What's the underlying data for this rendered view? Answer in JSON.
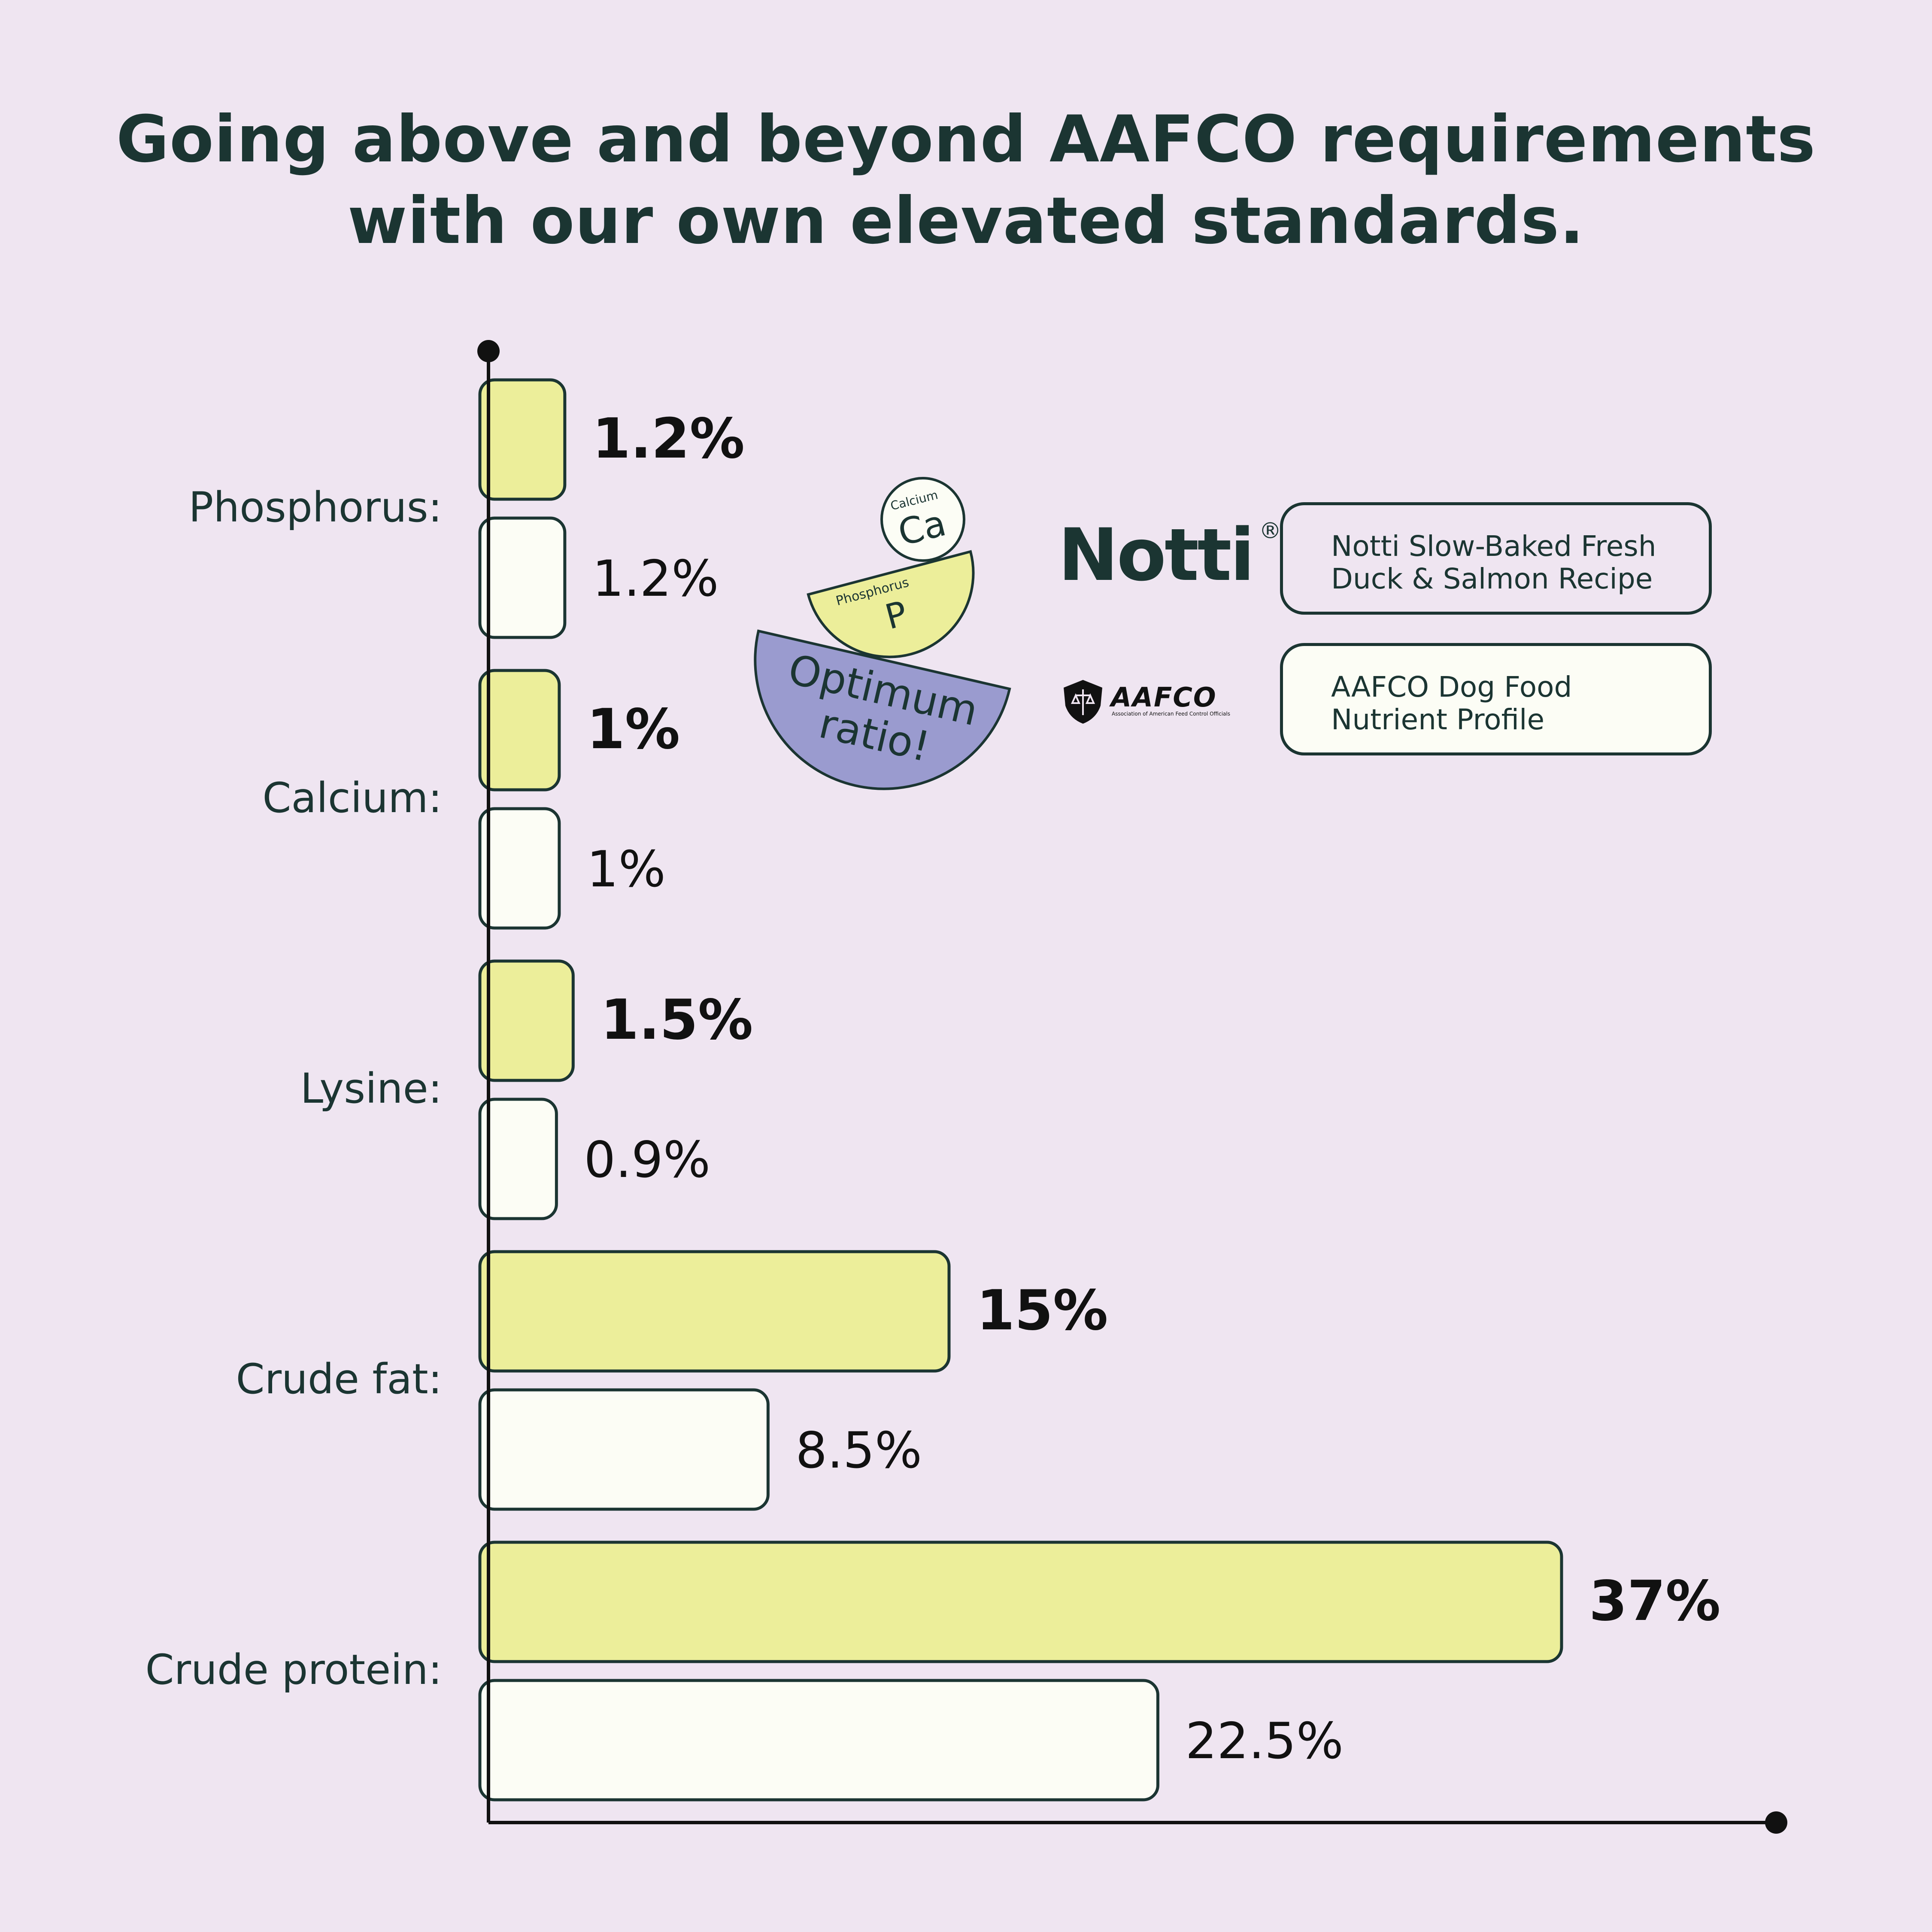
{
  "title_lines": [
    "Going above and beyond AAFCO requirements",
    "with our own elevated standards."
  ],
  "colors": {
    "background": "#EFE5F1",
    "notti_bar": "#ECEE9A",
    "aafco_bar": "#FCFDF5",
    "outline": "#1B3532",
    "ratio_bowl": "#9A9BCF"
  },
  "chart_data": {
    "type": "bar",
    "orientation": "horizontal",
    "categories": [
      "Phosphorus:",
      "Calcium:",
      "Lysine:",
      "Crude fat:",
      "Crude protein:"
    ],
    "series": [
      {
        "name": "Notti Slow-Baked Fresh Duck & Salmon Recipe",
        "values": [
          1.2,
          1,
          1.5,
          15,
          37
        ],
        "labels": [
          "1.2%",
          "1%",
          "1.5%",
          "15%",
          "37%"
        ],
        "color": "#ECEE9A"
      },
      {
        "name": "AAFCO Dog Food Nutrient Profile",
        "values": [
          1.2,
          1,
          0.9,
          8.5,
          22.5
        ],
        "labels": [
          "1.2%",
          "1%",
          "0.9%",
          "8.5%",
          "22.5%"
        ],
        "color": "#FCFDF5"
      }
    ],
    "xlabel": "",
    "ylabel": "",
    "grid": false,
    "legend_position": "top-right"
  },
  "legend": {
    "notti": {
      "brand": "Notti",
      "registered": "®",
      "lines": [
        "Notti Slow-Baked Fresh",
        "Duck & Salmon Recipe"
      ]
    },
    "aafco": {
      "brand": "AAFCO",
      "subtitle": "Association of American Feed Control Officials",
      "lines": [
        "AAFCO Dog Food",
        "Nutrient Profile"
      ]
    }
  },
  "ratio_graphic": {
    "calcium_label": "Calcium",
    "calcium_symbol": "Ca",
    "phosphorus_label": "Phosphorus",
    "phosphorus_symbol": "P",
    "bowl_lines": [
      "Optimum",
      "ratio!"
    ]
  }
}
